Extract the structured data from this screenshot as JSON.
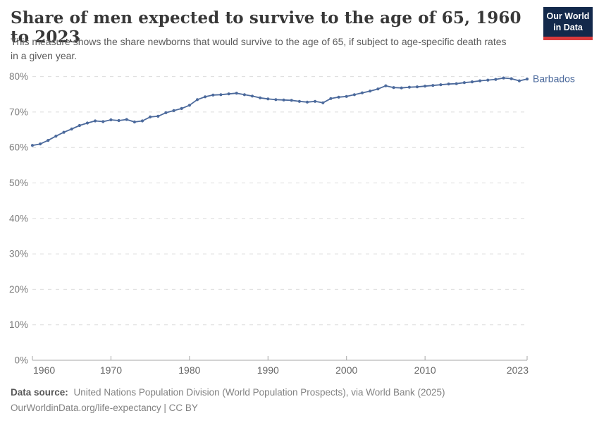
{
  "header": {
    "title": "Share of men expected to survive to the age of 65, 1960 to 2023",
    "subtitle": "This measure shows the share newborns that would survive to the age of 65, if subject to age-specific death rates in a given year."
  },
  "logo": {
    "line1": "Our World",
    "line2": "in Data",
    "bg_color": "#13294b",
    "accent_color": "#d93a3c"
  },
  "chart_data": {
    "type": "line",
    "title": "Share of men expected to survive to the age of 65, 1960 to 2023",
    "subtitle": "This measure shows the share newborns that would survive to the age of 65, if subject to age-specific death rates in a given year.",
    "xlabel": "",
    "ylabel": "",
    "x_start": 1960,
    "x_end": 2023,
    "ylim": [
      0,
      80
    ],
    "yticks": [
      "0%",
      "10%",
      "20%",
      "30%",
      "40%",
      "50%",
      "60%",
      "70%",
      "80%"
    ],
    "xticks": [
      "1960",
      "1970",
      "1980",
      "1990",
      "2000",
      "2010",
      "2023"
    ],
    "grid": "horizontal-dashed",
    "legend_position": "end-of-line-label",
    "series": [
      {
        "name": "Barbados",
        "color": "#4c6a9c",
        "x": [
          1960,
          1961,
          1962,
          1963,
          1964,
          1965,
          1966,
          1967,
          1968,
          1969,
          1970,
          1971,
          1972,
          1973,
          1974,
          1975,
          1976,
          1977,
          1978,
          1979,
          1980,
          1981,
          1982,
          1983,
          1984,
          1985,
          1986,
          1987,
          1988,
          1989,
          1990,
          1991,
          1992,
          1993,
          1994,
          1995,
          1996,
          1997,
          1998,
          1999,
          2000,
          2001,
          2002,
          2003,
          2004,
          2005,
          2006,
          2007,
          2008,
          2009,
          2010,
          2011,
          2012,
          2013,
          2014,
          2015,
          2016,
          2017,
          2018,
          2019,
          2020,
          2021,
          2022,
          2023
        ],
        "values": [
          60.6,
          61.0,
          62.0,
          63.2,
          64.3,
          65.2,
          66.2,
          66.9,
          67.5,
          67.3,
          67.8,
          67.6,
          67.9,
          67.2,
          67.5,
          68.6,
          68.8,
          69.8,
          70.4,
          71.0,
          71.9,
          73.5,
          74.3,
          74.8,
          74.9,
          75.1,
          75.3,
          74.9,
          74.5,
          74.0,
          73.7,
          73.5,
          73.4,
          73.3,
          73.0,
          72.8,
          73.0,
          72.6,
          73.8,
          74.2,
          74.4,
          74.9,
          75.4,
          75.9,
          76.5,
          77.4,
          76.9,
          76.8,
          77.0,
          77.1,
          77.3,
          77.5,
          77.7,
          77.9,
          78.0,
          78.3,
          78.5,
          78.8,
          79.0,
          79.2,
          79.6,
          79.4,
          78.8,
          79.3
        ]
      }
    ],
    "colors": {
      "line": "#4c6a9c",
      "grid": "#dcdcdc",
      "axis": "#a7a7a7",
      "ytick_text": "#7c7c7c",
      "xtick_text": "#696969"
    }
  },
  "footer": {
    "data_source_label": "Data source:",
    "data_source_text": "United Nations Population Division (World Population Prospects), via World Bank (2025)",
    "citation": "OurWorldinData.org/life-expectancy | CC BY"
  }
}
